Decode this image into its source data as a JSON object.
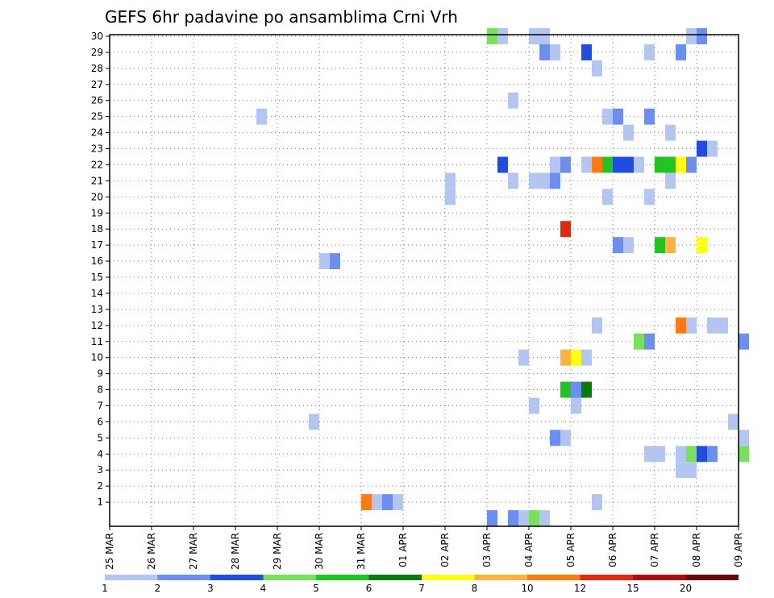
{
  "chart_data": {
    "type": "heatmap",
    "title": "GEFS 6hr padavine po ansamblima Crni Vrh",
    "xlabel": "",
    "ylabel": "",
    "x_ticks": [
      "25 MAR",
      "26 MAR",
      "27 MAR",
      "28 MAR",
      "29 MAR",
      "30 MAR",
      "31 MAR",
      "01 APR",
      "02 APR",
      "03 APR",
      "04 APR",
      "05 APR",
      "06 APR",
      "07 APR",
      "08 APR",
      "09 APR"
    ],
    "y_ticks": [
      "1",
      "2",
      "3",
      "4",
      "5",
      "6",
      "7",
      "8",
      "9",
      "10",
      "11",
      "12",
      "13",
      "14",
      "15",
      "16",
      "17",
      "18",
      "19",
      "20",
      "21",
      "22",
      "23",
      "24",
      "25",
      "26",
      "27",
      "28",
      "29",
      "30"
    ],
    "y_range": [
      0,
      30
    ],
    "x_step": "6 hours",
    "grid": true,
    "colorbar": {
      "bounds": [
        "1",
        "2",
        "3",
        "4",
        "5",
        "6",
        "7",
        "8",
        "10",
        "12",
        "15",
        "20"
      ],
      "colors": [
        "#b3c6f2",
        "#6b8ef0",
        "#1f4de0",
        "#78e05a",
        "#22c422",
        "#0a7a0a",
        "#ffff14",
        "#ffb240",
        "#ff7a10",
        "#e02a10",
        "#a81010",
        "#6a0808"
      ]
    },
    "cells": [
      {
        "member": 1,
        "time": "31 MAR 00Z",
        "value": 10.5
      },
      {
        "member": 1,
        "time": "31 MAR 06Z",
        "value": 1.5
      },
      {
        "member": 1,
        "time": "31 MAR 12Z",
        "value": 2.5
      },
      {
        "member": 1,
        "time": "31 MAR 18Z",
        "value": 1.5
      },
      {
        "member": 1,
        "time": "05 APR 12Z",
        "value": 1.5
      },
      {
        "member": 3,
        "time": "07 APR 12Z",
        "value": 1.5
      },
      {
        "member": 3,
        "time": "07 APR 18Z",
        "value": 1.5
      },
      {
        "member": 4,
        "time": "06 APR 18Z",
        "value": 1.5
      },
      {
        "member": 4,
        "time": "07 APR 00Z",
        "value": 1.5
      },
      {
        "member": 4,
        "time": "07 APR 12Z",
        "value": 1.5
      },
      {
        "member": 4,
        "time": "07 APR 18Z",
        "value": 4.5
      },
      {
        "member": 4,
        "time": "08 APR 00Z",
        "value": 3.5
      },
      {
        "member": 4,
        "time": "08 APR 06Z",
        "value": 2.5
      },
      {
        "member": 4,
        "time": "09 APR 00Z",
        "value": 4.5
      },
      {
        "member": 5,
        "time": "04 APR 12Z",
        "value": 2.5
      },
      {
        "member": 5,
        "time": "04 APR 18Z",
        "value": 1.5
      },
      {
        "member": 5,
        "time": "09 APR 00Z",
        "value": 1.5
      },
      {
        "member": 6,
        "time": "29 MAR 18Z",
        "value": 1.5
      },
      {
        "member": 6,
        "time": "08 APR 18Z",
        "value": 1.5
      },
      {
        "member": 7,
        "time": "04 APR 00Z",
        "value": 1.5
      },
      {
        "member": 7,
        "time": "05 APR 00Z",
        "value": 1.5
      },
      {
        "member": 8,
        "time": "04 APR 18Z",
        "value": 5.5
      },
      {
        "member": 8,
        "time": "05 APR 00Z",
        "value": 2.5
      },
      {
        "member": 8,
        "time": "05 APR 06Z",
        "value": 6.5
      },
      {
        "member": 10,
        "time": "03 APR 18Z",
        "value": 1.5
      },
      {
        "member": 10,
        "time": "04 APR 18Z",
        "value": 9.0
      },
      {
        "member": 10,
        "time": "05 APR 00Z",
        "value": 7.5
      },
      {
        "member": 10,
        "time": "05 APR 06Z",
        "value": 1.5
      },
      {
        "member": 11,
        "time": "06 APR 12Z",
        "value": 4.5
      },
      {
        "member": 11,
        "time": "06 APR 18Z",
        "value": 2.5
      },
      {
        "member": 11,
        "time": "09 APR 00Z",
        "value": 2.5
      },
      {
        "member": 12,
        "time": "05 APR 12Z",
        "value": 1.5
      },
      {
        "member": 12,
        "time": "07 APR 12Z",
        "value": 11.0
      },
      {
        "member": 12,
        "time": "07 APR 18Z",
        "value": 1.5
      },
      {
        "member": 12,
        "time": "08 APR 06Z",
        "value": 1.5
      },
      {
        "member": 12,
        "time": "08 APR 12Z",
        "value": 1.5
      },
      {
        "member": 16,
        "time": "30 MAR 00Z",
        "value": 1.5
      },
      {
        "member": 16,
        "time": "30 MAR 06Z",
        "value": 2.5
      },
      {
        "member": 17,
        "time": "06 APR 00Z",
        "value": 2.5
      },
      {
        "member": 17,
        "time": "06 APR 06Z",
        "value": 1.5
      },
      {
        "member": 17,
        "time": "07 APR 00Z",
        "value": 5.5
      },
      {
        "member": 17,
        "time": "07 APR 06Z",
        "value": 9.0
      },
      {
        "member": 17,
        "time": "08 APR 00Z",
        "value": 7.5
      },
      {
        "member": 18,
        "time": "04 APR 18Z",
        "value": 13.0
      },
      {
        "member": 20,
        "time": "02 APR 00Z",
        "value": 1.5
      },
      {
        "member": 20,
        "time": "05 APR 18Z",
        "value": 1.5
      },
      {
        "member": 20,
        "time": "06 APR 18Z",
        "value": 1.5
      },
      {
        "member": 21,
        "time": "02 APR 00Z",
        "value": 1.5
      },
      {
        "member": 21,
        "time": "03 APR 12Z",
        "value": 1.5
      },
      {
        "member": 21,
        "time": "04 APR 00Z",
        "value": 1.5
      },
      {
        "member": 21,
        "time": "04 APR 06Z",
        "value": 1.5
      },
      {
        "member": 21,
        "time": "04 APR 12Z",
        "value": 2.5
      },
      {
        "member": 21,
        "time": "07 APR 06Z",
        "value": 1.5
      },
      {
        "member": 22,
        "time": "03 APR 06Z",
        "value": 3.5
      },
      {
        "member": 22,
        "time": "04 APR 12Z",
        "value": 1.5
      },
      {
        "member": 22,
        "time": "04 APR 18Z",
        "value": 2.5
      },
      {
        "member": 22,
        "time": "05 APR 06Z",
        "value": 1.5
      },
      {
        "member": 22,
        "time": "05 APR 12Z",
        "value": 11.0
      },
      {
        "member": 22,
        "time": "05 APR 18Z",
        "value": 5.5
      },
      {
        "member": 22,
        "time": "06 APR 00Z",
        "value": 3.5
      },
      {
        "member": 22,
        "time": "06 APR 06Z",
        "value": 3.5
      },
      {
        "member": 22,
        "time": "06 APR 12Z",
        "value": 1.5
      },
      {
        "member": 22,
        "time": "07 APR 00Z",
        "value": 5.5
      },
      {
        "member": 22,
        "time": "07 APR 06Z",
        "value": 5.5
      },
      {
        "member": 22,
        "time": "07 APR 12Z",
        "value": 7.5
      },
      {
        "member": 22,
        "time": "07 APR 18Z",
        "value": 2.5
      },
      {
        "member": 23,
        "time": "08 APR 00Z",
        "value": 3.5
      },
      {
        "member": 23,
        "time": "08 APR 06Z",
        "value": 1.5
      },
      {
        "member": 24,
        "time": "06 APR 06Z",
        "value": 1.5
      },
      {
        "member": 24,
        "time": "07 APR 06Z",
        "value": 1.5
      },
      {
        "member": 25,
        "time": "28 MAR 12Z",
        "value": 1.5
      },
      {
        "member": 25,
        "time": "05 APR 18Z",
        "value": 1.5
      },
      {
        "member": 25,
        "time": "06 APR 00Z",
        "value": 2.5
      },
      {
        "member": 25,
        "time": "06 APR 18Z",
        "value": 2.5
      },
      {
        "member": 26,
        "time": "03 APR 12Z",
        "value": 1.5
      },
      {
        "member": 28,
        "time": "05 APR 12Z",
        "value": 1.5
      },
      {
        "member": 29,
        "time": "04 APR 06Z",
        "value": 2.5
      },
      {
        "member": 29,
        "time": "04 APR 12Z",
        "value": 1.5
      },
      {
        "member": 29,
        "time": "05 APR 06Z",
        "value": 3.5
      },
      {
        "member": 29,
        "time": "06 APR 18Z",
        "value": 1.5
      },
      {
        "member": 29,
        "time": "07 APR 12Z",
        "value": 2.5
      },
      {
        "member": 30,
        "time": "03 APR 00Z",
        "value": 4.5
      },
      {
        "member": 30,
        "time": "03 APR 06Z",
        "value": 1.5
      },
      {
        "member": 30,
        "time": "04 APR 00Z",
        "value": 1.5
      },
      {
        "member": 30,
        "time": "04 APR 06Z",
        "value": 1.5
      },
      {
        "member": 30,
        "time": "07 APR 18Z",
        "value": 1.5
      },
      {
        "member": 30,
        "time": "08 APR 00Z",
        "value": 2.5
      },
      {
        "member": 0,
        "time": "03 APR 00Z",
        "value": 2.5
      },
      {
        "member": 0,
        "time": "03 APR 12Z",
        "value": 2.5
      },
      {
        "member": 0,
        "time": "03 APR 18Z",
        "value": 1.5
      },
      {
        "member": 0,
        "time": "04 APR 00Z",
        "value": 4.5
      },
      {
        "member": 0,
        "time": "04 APR 06Z",
        "value": 1.5
      }
    ]
  }
}
